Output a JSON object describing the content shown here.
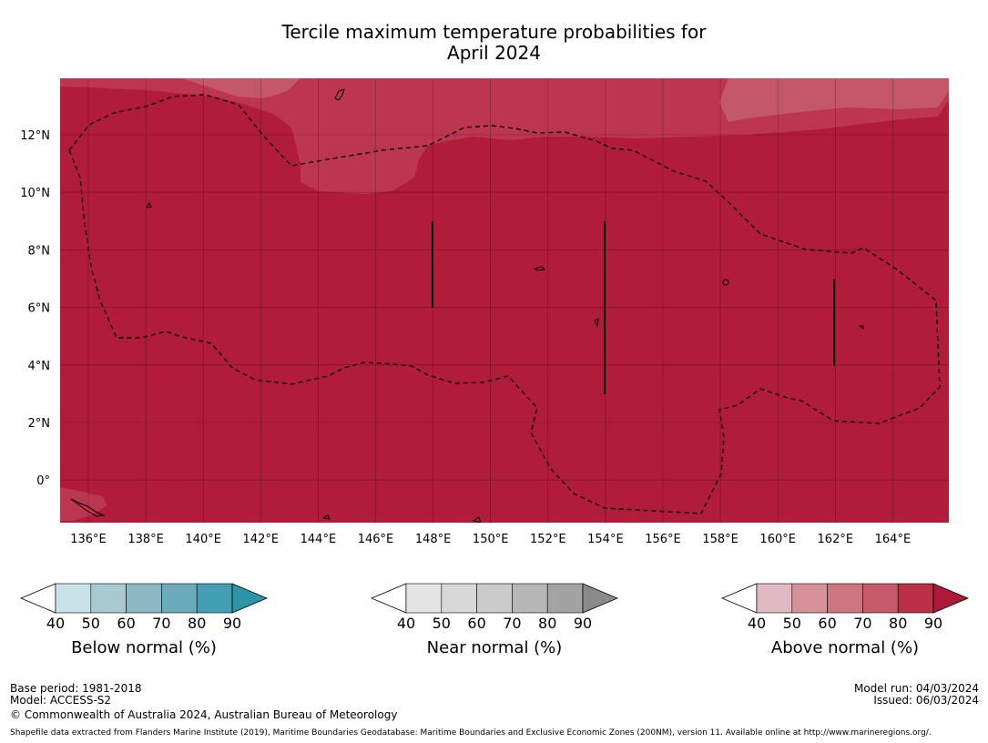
{
  "title": {
    "line1": "Tercile maximum temperature probabilities for",
    "line2": "April 2024"
  },
  "map": {
    "lon_ticks": [
      "136°E",
      "138°E",
      "140°E",
      "142°E",
      "144°E",
      "146°E",
      "148°E",
      "150°E",
      "152°E",
      "154°E",
      "156°E",
      "158°E",
      "160°E",
      "162°E",
      "164°E"
    ],
    "lat_ticks": [
      "12°N",
      "10°N",
      "8°N",
      "6°N",
      "4°N",
      "2°N",
      "0°"
    ],
    "colors": {
      "above_90": "#b11c3a",
      "above_80": "#bd3650",
      "above_70": "#c55868",
      "outline": "#000000"
    }
  },
  "colorbars": [
    {
      "label": "Below normal (%)",
      "ticks": [
        "40",
        "50",
        "60",
        "70",
        "80",
        "90"
      ],
      "colors": [
        "#c9e2e8",
        "#a9c9d0",
        "#8cb8c4",
        "#6babb9",
        "#43a0b3",
        "#2e94a8"
      ]
    },
    {
      "label": "Near normal (%)",
      "ticks": [
        "40",
        "50",
        "60",
        "70",
        "80",
        "90"
      ],
      "colors": [
        "#e5e5e5",
        "#d8d8d8",
        "#cbcbcb",
        "#b7b7b7",
        "#a3a3a3",
        "#8a8a8a"
      ]
    },
    {
      "label": "Above normal (%)",
      "ticks": [
        "40",
        "50",
        "60",
        "70",
        "80",
        "90"
      ],
      "colors": [
        "#e1b9c2",
        "#d79199",
        "#cd7580",
        "#c65a68",
        "#bb2f47",
        "#ad1a39"
      ]
    }
  ],
  "footer": {
    "base_period": "Base period: 1981-2018",
    "model": "Model: ACCESS-S2",
    "copyright": "© Commonwealth of Australia 2024, Australian Bureau of Meteorology",
    "model_run": "Model run: 04/03/2024",
    "issued": "Issued: 06/03/2024",
    "shapefile": "Shapefile data extracted from Flanders Marine Institute (2019), Maritime Boundaries Geodatabase: Maritime Boundaries and Exclusive Economic Zones (200NM), version 11. Available online at http://www.marineregions.org/."
  }
}
